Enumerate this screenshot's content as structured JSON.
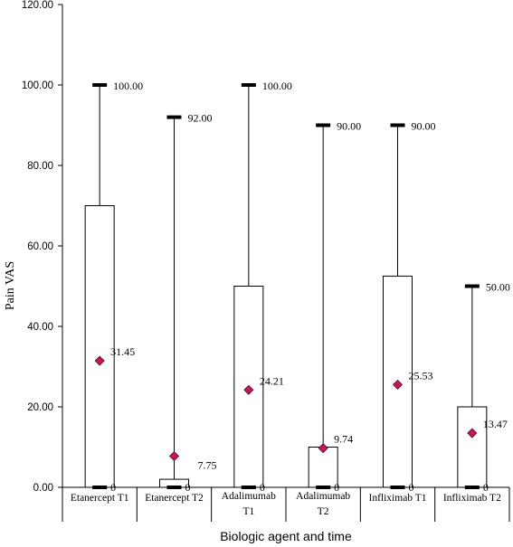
{
  "chart_data": {
    "type": "box",
    "title": "",
    "xlabel": "Biologic agent and time",
    "ylabel": "Pain VAS",
    "ylim": [
      0,
      120
    ],
    "yticks": [
      "0.00",
      "20.00",
      "40.00",
      "60.00",
      "80.00",
      "100.00",
      "120.00"
    ],
    "categories": [
      [
        "Etanercept T1"
      ],
      [
        "Etanercept T2"
      ],
      [
        "Adalimumab",
        "T1"
      ],
      [
        "Adalimumab",
        "T2"
      ],
      [
        "Infliximab T1"
      ],
      [
        "Infliximab T2"
      ]
    ],
    "series": [
      {
        "min": [
          0,
          0,
          0,
          0,
          0,
          0
        ],
        "q1": [
          0,
          0,
          0,
          0,
          0,
          0
        ],
        "q3": [
          70,
          2,
          50,
          10,
          52.5,
          20
        ],
        "max": [
          100,
          92,
          100,
          90,
          90,
          50
        ],
        "mean": [
          31.45,
          7.75,
          24.21,
          9.74,
          25.53,
          13.47
        ],
        "max_labels": [
          "100.00",
          "92.00",
          "100.00",
          "90.00",
          "90.00",
          "50.00"
        ],
        "min_labels": [
          "0",
          "0",
          "0",
          "0",
          "0",
          "0"
        ],
        "mean_labels": [
          "31.45",
          "7.75",
          "24.21",
          "9.74",
          "25.53",
          "13.47"
        ]
      }
    ],
    "mean_color": "#c2185b",
    "mean_stroke": "#5a0a2a",
    "grid": false,
    "legend": "none"
  }
}
